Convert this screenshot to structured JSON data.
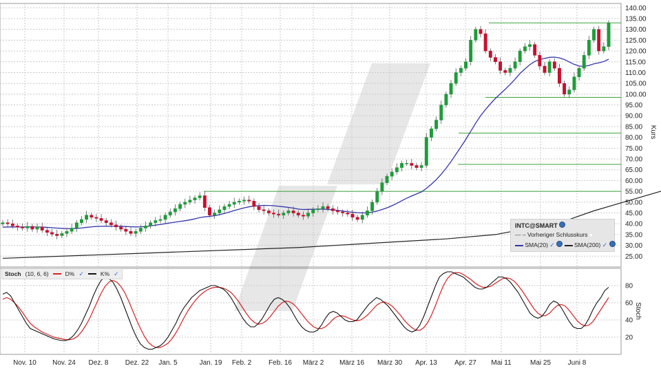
{
  "chart_data": [
    {
      "type": "candlestick",
      "ylabel": "Kurs",
      "ylim": [
        20,
        142
      ],
      "y_ticks": [
        "25.00",
        "30.00",
        "35.00",
        "40.00",
        "45.00",
        "50.00",
        "55.00",
        "60.00",
        "65.00",
        "70.00",
        "75.00",
        "80.00",
        "85.00",
        "90.00",
        "95.00",
        "100.00",
        "105.00",
        "110.00",
        "115.00",
        "120.00",
        "125.00",
        "130.00",
        "135.00",
        "140.00"
      ],
      "x_ticks": [
        "Nov. 10",
        "Nov. 24",
        "Dez. 8",
        "Dez. 22",
        "Jan. 5",
        "Jan. 19",
        "Feb. 2",
        "Feb. 16",
        "März 2",
        "März 16",
        "März 30",
        "Apr. 13",
        "Apr. 27",
        "Mai 11",
        "Mai 25",
        "Juni 8"
      ],
      "legend": {
        "title": "INTC@SMART",
        "prev_close": "Vorheriger Schlusskurs",
        "sma20": "SMA(20)",
        "sma200": "SMA(200)"
      },
      "closes": [
        40.5,
        40,
        39,
        38.5,
        38,
        38.8,
        37.5,
        38.5,
        37,
        36,
        35.2,
        34.5,
        35.5,
        36.5,
        38,
        40.5,
        42,
        44,
        43,
        42.5,
        41.5,
        40.5,
        39.5,
        38.5,
        37.5,
        36.5,
        35.5,
        36.5,
        38,
        39,
        40.5,
        41.5,
        42,
        44,
        45.5,
        47,
        49,
        50,
        51,
        52,
        53,
        47.5,
        44,
        45,
        46.5,
        48,
        49,
        50,
        50.5,
        51,
        50.5,
        48,
        46.5,
        46,
        45,
        44.5,
        44,
        45,
        46,
        45,
        44,
        43.5,
        45,
        46.5,
        47,
        48,
        47,
        46,
        45.5,
        45,
        44.5,
        43,
        42,
        44,
        46,
        50,
        55,
        59,
        62,
        64,
        66,
        68,
        68,
        67,
        66,
        67,
        80,
        84,
        88,
        95,
        100,
        105,
        110,
        112,
        115,
        125,
        130,
        128,
        120,
        117,
        115,
        111,
        110,
        112,
        115,
        120,
        122,
        123,
        118,
        113,
        110,
        115,
        112,
        105,
        100,
        102,
        108,
        112,
        118,
        125,
        130,
        120,
        122,
        133
      ],
      "sma20_start": 38.3,
      "sma200": [
        [
          0,
          24.0
        ],
        [
          30,
          26.5
        ],
        [
          60,
          29
        ],
        [
          90,
          33
        ],
        [
          100,
          35
        ],
        [
          107,
          38
        ],
        [
          115,
          42
        ],
        [
          120,
          46
        ],
        [
          129,
          52
        ],
        [
          135,
          56
        ]
      ],
      "horizontal_levels": [
        55,
        67.5,
        82,
        98.5,
        133
      ],
      "sub_chart": {
        "name": "Stoch",
        "params": "(10, 6, 6)",
        "d_label": "D%",
        "k_label": "K%",
        "y_ticks": [
          "20",
          "40",
          "60",
          "80"
        ],
        "ylim": [
          0,
          100
        ],
        "k_values": [
          70,
          72,
          68,
          60,
          52,
          44,
          36,
          30,
          28,
          26,
          24,
          22,
          20,
          18,
          17,
          16,
          16,
          18,
          22,
          28,
          36,
          46,
          56,
          68,
          78,
          86,
          90,
          88,
          84,
          76,
          66,
          54,
          42,
          30,
          20,
          12,
          8,
          6,
          6,
          8,
          10,
          14,
          20,
          28,
          36,
          46,
          54,
          60,
          66,
          70,
          74,
          76,
          78,
          80,
          80,
          78,
          76,
          72,
          66,
          58,
          50,
          42,
          36,
          32,
          32,
          36,
          42,
          50,
          58,
          64,
          66,
          64,
          60,
          54,
          46,
          38,
          32,
          28,
          26,
          26,
          28,
          34,
          42,
          48,
          50,
          48,
          44,
          40,
          38,
          38,
          40,
          46,
          52,
          58,
          62,
          66,
          64,
          60,
          56,
          50,
          44,
          38,
          32,
          28,
          26,
          28,
          34,
          44,
          56,
          68,
          80,
          90,
          94,
          96,
          96,
          94,
          92,
          90,
          86,
          82,
          78,
          76,
          76,
          78,
          82,
          86,
          90,
          90,
          88,
          84,
          78,
          72,
          64,
          56,
          48,
          44,
          42,
          44,
          50,
          58,
          62,
          60,
          54,
          46,
          38,
          32,
          30,
          30,
          34,
          42,
          52,
          60,
          66,
          74,
          78
        ],
        "d_values": [
          64,
          66,
          64,
          60,
          55,
          49,
          42,
          36,
          32,
          29,
          26,
          24,
          22,
          20,
          19,
          18,
          17,
          17,
          18,
          21,
          26,
          33,
          41,
          51,
          61,
          71,
          79,
          84,
          86,
          84,
          79,
          72,
          62,
          51,
          40,
          30,
          21,
          14,
          10,
          8,
          8,
          10,
          13,
          18,
          25,
          33,
          42,
          50,
          57,
          63,
          68,
          72,
          75,
          77,
          78,
          78,
          77,
          75,
          72,
          67,
          61,
          54,
          47,
          41,
          37,
          35,
          36,
          39,
          44,
          50,
          56,
          60,
          62,
          61,
          58,
          53,
          47,
          41,
          36,
          32,
          30,
          30,
          32,
          36,
          41,
          44,
          45,
          44,
          42,
          40,
          39,
          40,
          43,
          47,
          52,
          57,
          60,
          61,
          59,
          56,
          51,
          46,
          40,
          35,
          31,
          28,
          28,
          31,
          37,
          46,
          57,
          69,
          80,
          88,
          93,
          95,
          95,
          93,
          90,
          87,
          83,
          80,
          78,
          78,
          79,
          82,
          85,
          88,
          89,
          88,
          85,
          80,
          74,
          67,
          60,
          53,
          48,
          45,
          45,
          48,
          53,
          57,
          58,
          56,
          51,
          45,
          39,
          35,
          33,
          34,
          38,
          45,
          52,
          59,
          66
        ]
      }
    }
  ]
}
